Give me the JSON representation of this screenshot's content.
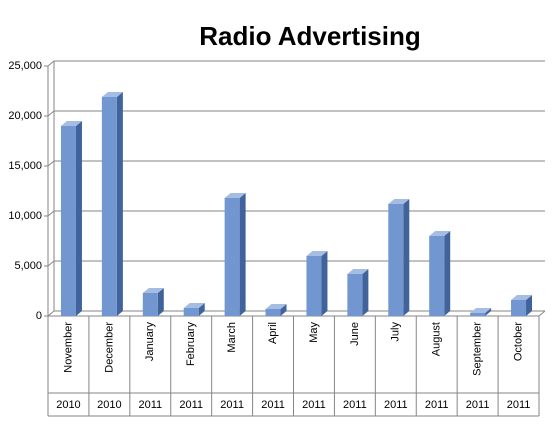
{
  "chart_data": {
    "type": "bar",
    "title": "Radio Advertising",
    "categories": [
      "November",
      "December",
      "January",
      "February",
      "March",
      "April",
      "May",
      "June",
      "July",
      "August",
      "September",
      "October"
    ],
    "years": [
      "2010",
      "2010",
      "2011",
      "2011",
      "2011",
      "2011",
      "2011",
      "2011",
      "2011",
      "2011",
      "2011",
      "2011"
    ],
    "values": [
      19000,
      21900,
      2300,
      800,
      11800,
      700,
      6000,
      4200,
      11200,
      8000,
      300,
      1600
    ],
    "color": "#7196d0",
    "ylim": [
      0,
      25000
    ],
    "yticks": [
      0,
      {
        "value": 5000,
        "label": "5,000"
      },
      {
        "value": 10000,
        "label": "10,000"
      },
      {
        "value": 15000,
        "label": "15,000"
      },
      {
        "value": 20000,
        "label": "20,000"
      },
      {
        "value": 25000,
        "label": "25,000"
      }
    ],
    "grid": true
  }
}
